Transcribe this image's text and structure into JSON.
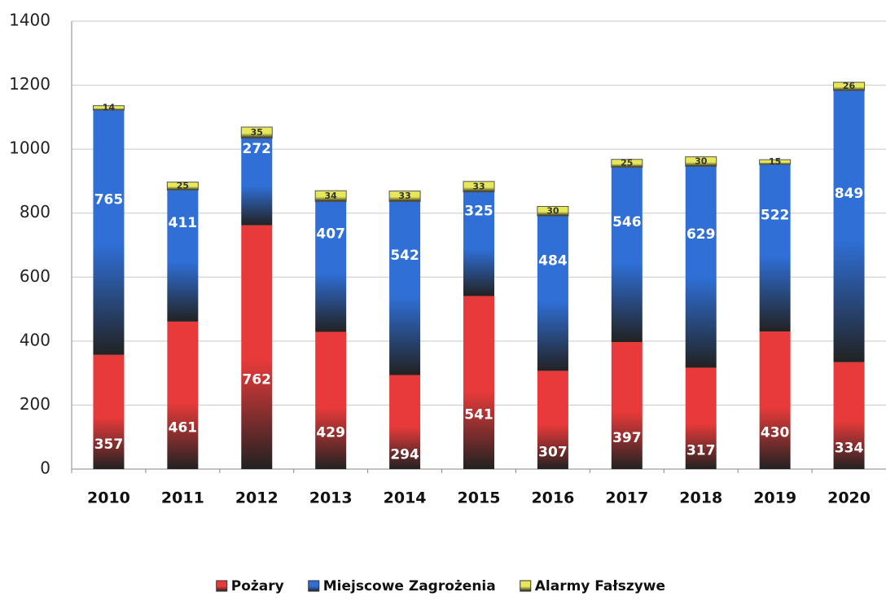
{
  "chart_data": {
    "type": "stacked_bar",
    "categories": [
      "2010",
      "2011",
      "2012",
      "2013",
      "2014",
      "2015",
      "2016",
      "2017",
      "2018",
      "2019",
      "2020"
    ],
    "series": [
      {
        "name": "Pożary",
        "color": "#e83a3a",
        "values": [
          357,
          461,
          762,
          429,
          294,
          541,
          307,
          397,
          317,
          430,
          334
        ]
      },
      {
        "name": "Miejscowe Zagrożenia",
        "color": "#2f6fd6",
        "values": [
          765,
          411,
          272,
          407,
          542,
          325,
          484,
          546,
          629,
          522,
          849
        ]
      },
      {
        "name": "Alarmy Fałszywe",
        "color": "#e6e85a",
        "values": [
          14,
          25,
          35,
          34,
          33,
          33,
          30,
          25,
          30,
          15,
          26
        ]
      }
    ],
    "ylim": [
      0,
      1400
    ],
    "yticks": [
      0,
      200,
      400,
      600,
      800,
      1000,
      1200,
      1400
    ],
    "grid": true,
    "legend": "bottom"
  }
}
